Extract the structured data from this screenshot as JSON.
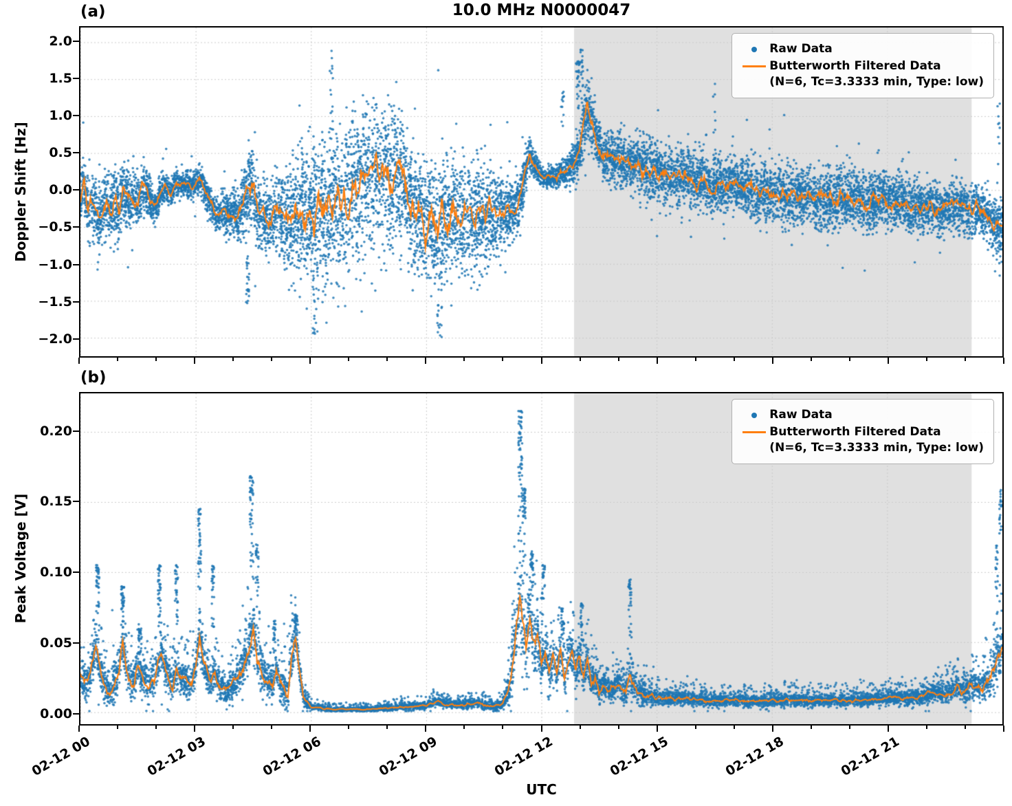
{
  "title": "10.0 MHz N0000047",
  "x_axis": {
    "label": "UTC",
    "ticks": [
      {
        "hour": 0,
        "label": "02-12 00"
      },
      {
        "hour": 3,
        "label": "02-12 03"
      },
      {
        "hour": 6,
        "label": "02-12 06"
      },
      {
        "hour": 9,
        "label": "02-12 09"
      },
      {
        "hour": 12,
        "label": "02-12 12"
      },
      {
        "hour": 15,
        "label": "02-12 15"
      },
      {
        "hour": 18,
        "label": "02-12 18"
      },
      {
        "hour": 21,
        "label": "02-12 21"
      }
    ]
  },
  "legend": {
    "raw_label": "Raw Data",
    "filtered_label": "Butterworth Filtered Data",
    "filtered_params": "(N=6, Tc=3.3333 min, Type: low)"
  },
  "colors": {
    "raw": "#1f77b4",
    "filtered": "#ff7f0e",
    "shade": "rgba(160,160,160,0.32)",
    "grid": "#c9c9c9"
  },
  "chart_data": [
    {
      "type": "scatter",
      "tag": "(a)",
      "title": "10.0 MHz N0000047",
      "ylabel": "Doppler Shift [Hz]",
      "xlabel": "UTC",
      "x_unit": "hours since 2023-02-12 00:00 UTC",
      "xlim_hours": [
        0,
        24
      ],
      "ylim": [
        -2.25,
        2.2
      ],
      "grid": true,
      "legend_position": "upper right",
      "legend": [
        "Raw Data",
        "Butterworth Filtered Data (N=6, Tc=3.3333 min, Type: low)"
      ],
      "shaded_region_hours": [
        12.85,
        23.2
      ],
      "seed": 42,
      "n_points": 12000,
      "spread": 0.75,
      "outlier_frac": 0.04,
      "line_jitter": 1.0,
      "yticks": [
        {
          "value": 2.0,
          "label": "2.0"
        },
        {
          "value": 1.5,
          "label": "1.5"
        },
        {
          "value": 1.0,
          "label": "1.0"
        },
        {
          "value": 0.5,
          "label": "0.5"
        },
        {
          "value": 0.0,
          "label": "0.0"
        },
        {
          "value": -0.5,
          "label": "−0.5"
        },
        {
          "value": -1.0,
          "label": "−1.0"
        },
        {
          "value": -1.5,
          "label": "−1.5"
        },
        {
          "value": -2.0,
          "label": "−2.0"
        }
      ],
      "filtered_line": {
        "x": [
          0.0,
          0.1,
          0.2,
          0.35,
          0.5,
          0.6,
          0.7,
          0.8,
          0.9,
          1.0,
          1.1,
          1.2,
          1.35,
          1.5,
          1.6,
          1.75,
          1.9,
          2.0,
          2.1,
          2.2,
          2.35,
          2.5,
          2.6,
          2.75,
          2.9,
          3.0,
          3.1,
          3.25,
          3.4,
          3.5,
          3.6,
          3.75,
          3.9,
          4.0,
          4.1,
          4.2,
          4.3,
          4.4,
          4.5,
          4.6,
          4.7,
          4.8,
          4.9,
          5.0,
          5.2,
          5.4,
          5.6,
          5.8,
          6.0,
          6.2,
          6.4,
          6.6,
          6.8,
          7.0,
          7.1,
          7.2,
          7.3,
          7.4,
          7.5,
          7.6,
          7.7,
          7.8,
          7.9,
          8.0,
          8.1,
          8.2,
          8.3,
          8.4,
          8.5,
          8.6,
          8.7,
          8.8,
          8.9,
          9.0,
          9.1,
          9.2,
          9.3,
          9.4,
          9.5,
          9.6,
          9.7,
          9.8,
          9.9,
          10.0,
          10.2,
          10.4,
          10.6,
          10.8,
          11.0,
          11.2,
          11.4,
          11.5,
          11.6,
          11.7,
          11.8,
          11.9,
          12.0,
          12.1,
          12.2,
          12.4,
          12.5,
          12.6,
          12.7,
          12.8,
          12.9,
          13.0,
          13.1,
          13.2,
          13.3,
          13.4,
          13.5,
          13.6,
          13.7,
          13.8,
          13.9,
          14.0,
          14.2,
          14.4,
          14.6,
          14.8,
          15.0,
          15.2,
          15.4,
          15.6,
          15.8,
          16.0,
          16.2,
          16.4,
          16.6,
          16.8,
          17.0,
          17.2,
          17.4,
          17.6,
          17.8,
          18.0,
          18.2,
          18.4,
          18.6,
          18.8,
          19.0,
          19.2,
          19.4,
          19.6,
          19.8,
          20.0,
          20.2,
          20.4,
          20.6,
          20.8,
          21.0,
          21.2,
          21.4,
          21.6,
          21.8,
          22.0,
          22.2,
          22.4,
          22.6,
          22.8,
          23.0,
          23.2,
          23.4,
          23.6,
          23.8,
          24.0
        ],
        "y": [
          -0.1,
          0.15,
          -0.3,
          -0.2,
          -0.45,
          -0.3,
          -0.2,
          -0.35,
          -0.15,
          -0.3,
          0.0,
          -0.15,
          -0.1,
          -0.2,
          0.05,
          -0.05,
          -0.25,
          -0.2,
          0.0,
          0.05,
          -0.05,
          0.1,
          0.05,
          0.1,
          0.05,
          0.1,
          0.15,
          0.0,
          -0.2,
          -0.3,
          -0.35,
          -0.3,
          -0.35,
          -0.3,
          -0.45,
          -0.2,
          -0.1,
          0.1,
          0.05,
          -0.3,
          -0.4,
          -0.35,
          -0.45,
          -0.4,
          -0.35,
          -0.45,
          -0.35,
          -0.3,
          -0.35,
          -0.25,
          -0.3,
          -0.2,
          -0.25,
          -0.1,
          0.1,
          -0.05,
          0.2,
          0.1,
          0.3,
          0.15,
          0.25,
          0.1,
          0.2,
          0.25,
          0.1,
          0.3,
          0.15,
          0.2,
          -0.1,
          -0.2,
          -0.3,
          -0.25,
          -0.4,
          -0.5,
          -0.4,
          -0.55,
          -0.45,
          -0.35,
          -0.45,
          -0.4,
          -0.3,
          -0.35,
          -0.45,
          -0.4,
          -0.35,
          -0.4,
          -0.3,
          -0.35,
          -0.3,
          -0.25,
          -0.2,
          0.0,
          0.3,
          0.5,
          0.35,
          0.25,
          0.2,
          0.15,
          0.2,
          0.15,
          0.25,
          0.2,
          0.3,
          0.35,
          0.4,
          0.5,
          0.9,
          1.1,
          0.95,
          0.8,
          0.6,
          0.5,
          0.45,
          0.5,
          0.4,
          0.45,
          0.35,
          0.4,
          0.3,
          0.25,
          0.3,
          0.2,
          0.25,
          0.15,
          0.2,
          0.1,
          0.15,
          0.05,
          0.1,
          0.05,
          0.1,
          0.0,
          0.05,
          -0.05,
          0.0,
          -0.05,
          0.0,
          -0.1,
          -0.05,
          -0.1,
          -0.05,
          -0.15,
          -0.1,
          -0.15,
          -0.1,
          -0.15,
          -0.1,
          -0.2,
          -0.15,
          -0.1,
          -0.15,
          -0.2,
          -0.15,
          -0.25,
          -0.2,
          -0.25,
          -0.2,
          -0.3,
          -0.25,
          -0.2,
          -0.25,
          -0.3,
          -0.25,
          -0.35,
          -0.45,
          -0.55
        ]
      },
      "raw_scatter_envelope": {
        "x": [
          0.0,
          0.5,
          1.0,
          1.5,
          2.0,
          2.5,
          3.0,
          3.5,
          4.0,
          4.3,
          4.5,
          5.0,
          5.5,
          6.0,
          6.5,
          7.0,
          7.5,
          8.0,
          8.5,
          9.0,
          9.5,
          10.0,
          10.5,
          11.0,
          11.5,
          12.0,
          12.5,
          12.8,
          13.0,
          13.2,
          13.5,
          14.0,
          14.5,
          15.0,
          16.0,
          17.0,
          18.0,
          19.0,
          20.0,
          21.0,
          22.0,
          23.0,
          23.5,
          24.0
        ],
        "amplitude": [
          0.45,
          0.5,
          0.55,
          0.4,
          0.25,
          0.2,
          0.2,
          0.25,
          0.35,
          0.5,
          0.6,
          0.55,
          0.9,
          1.1,
          1.2,
          1.15,
          1.1,
          1.05,
          0.9,
          0.9,
          0.95,
          0.9,
          0.8,
          0.6,
          0.35,
          0.15,
          0.18,
          0.25,
          0.35,
          0.45,
          0.4,
          0.4,
          0.45,
          0.45,
          0.45,
          0.4,
          0.45,
          0.45,
          0.45,
          0.4,
          0.4,
          0.35,
          0.35,
          0.45
        ]
      },
      "spikes": [
        {
          "x": 4.35,
          "peak": -1.55,
          "count": 25,
          "width": 0.1
        },
        {
          "x": 6.1,
          "peak": -2.0,
          "count": 20,
          "width": 0.15
        },
        {
          "x": 6.55,
          "peak": 1.9,
          "count": 15,
          "width": 0.12
        },
        {
          "x": 9.35,
          "peak": -2.0,
          "count": 18,
          "width": 0.12
        },
        {
          "x": 12.55,
          "peak": 1.35,
          "count": 12,
          "width": 0.08
        },
        {
          "x": 12.95,
          "peak": 1.8,
          "count": 30,
          "width": 0.1
        },
        {
          "x": 13.05,
          "peak": 1.9,
          "count": 20,
          "width": 0.08
        },
        {
          "x": 16.5,
          "peak": 1.45,
          "count": 8,
          "width": 0.06
        },
        {
          "x": 23.9,
          "peak": 1.3,
          "count": 10,
          "width": 0.08
        }
      ]
    },
    {
      "type": "scatter",
      "tag": "(b)",
      "title": "",
      "ylabel": "Peak Voltage [V]",
      "xlabel": "UTC",
      "x_unit": "hours since 2023-02-12 00:00 UTC",
      "xlim_hours": [
        0,
        24
      ],
      "ylim": [
        -0.0085,
        0.2275
      ],
      "grid": true,
      "legend_position": "upper right",
      "legend": [
        "Raw Data",
        "Butterworth Filtered Data (N=6, Tc=3.3333 min, Type: low)"
      ],
      "shaded_region_hours": [
        12.85,
        23.2
      ],
      "seed": 1337,
      "n_points": 9500,
      "spread": 0.6,
      "outlier_frac": 0.03,
      "line_jitter": 0.9,
      "nonneg": true,
      "yticks": [
        {
          "value": 0.2,
          "label": "0.20"
        },
        {
          "value": 0.15,
          "label": "0.15"
        },
        {
          "value": 0.1,
          "label": "0.10"
        },
        {
          "value": 0.05,
          "label": "0.05"
        },
        {
          "value": 0.0,
          "label": "0.00"
        }
      ],
      "filtered_line": {
        "x": [
          0.0,
          0.2,
          0.4,
          0.5,
          0.6,
          0.8,
          1.0,
          1.1,
          1.2,
          1.4,
          1.5,
          1.6,
          1.8,
          2.0,
          2.1,
          2.2,
          2.4,
          2.5,
          2.6,
          2.8,
          3.0,
          3.1,
          3.2,
          3.4,
          3.5,
          3.6,
          3.8,
          4.0,
          4.2,
          4.4,
          4.5,
          4.6,
          4.8,
          5.0,
          5.1,
          5.2,
          5.4,
          5.5,
          5.6,
          5.7,
          5.8,
          6.0,
          6.5,
          7.0,
          7.5,
          8.0,
          8.5,
          9.0,
          9.3,
          9.5,
          10.0,
          10.3,
          10.5,
          10.8,
          11.0,
          11.2,
          11.3,
          11.4,
          11.45,
          11.5,
          11.6,
          11.7,
          11.8,
          11.9,
          12.0,
          12.1,
          12.2,
          12.3,
          12.4,
          12.5,
          12.6,
          12.7,
          12.8,
          12.9,
          13.0,
          13.1,
          13.2,
          13.3,
          13.4,
          13.5,
          13.6,
          13.8,
          14.0,
          14.2,
          14.3,
          14.4,
          14.5,
          14.7,
          15.0,
          15.5,
          16.0,
          16.5,
          17.0,
          17.5,
          18.0,
          18.5,
          19.0,
          19.5,
          20.0,
          20.5,
          21.0,
          21.5,
          22.0,
          22.3,
          22.5,
          22.8,
          23.0,
          23.2,
          23.5,
          23.7,
          23.9,
          24.0
        ],
        "y": [
          0.025,
          0.02,
          0.05,
          0.03,
          0.02,
          0.015,
          0.03,
          0.05,
          0.03,
          0.02,
          0.035,
          0.025,
          0.02,
          0.03,
          0.045,
          0.03,
          0.02,
          0.03,
          0.025,
          0.02,
          0.03,
          0.055,
          0.035,
          0.02,
          0.03,
          0.02,
          0.015,
          0.02,
          0.03,
          0.05,
          0.065,
          0.04,
          0.025,
          0.02,
          0.03,
          0.02,
          0.015,
          0.04,
          0.055,
          0.03,
          0.01,
          0.004,
          0.002,
          0.002,
          0.002,
          0.003,
          0.004,
          0.005,
          0.008,
          0.006,
          0.005,
          0.007,
          0.005,
          0.004,
          0.006,
          0.02,
          0.05,
          0.07,
          0.09,
          0.06,
          0.05,
          0.07,
          0.045,
          0.055,
          0.03,
          0.045,
          0.025,
          0.04,
          0.03,
          0.045,
          0.025,
          0.035,
          0.045,
          0.03,
          0.04,
          0.025,
          0.035,
          0.02,
          0.025,
          0.015,
          0.02,
          0.015,
          0.02,
          0.015,
          0.03,
          0.02,
          0.015,
          0.012,
          0.01,
          0.01,
          0.009,
          0.008,
          0.009,
          0.008,
          0.008,
          0.009,
          0.008,
          0.009,
          0.008,
          0.009,
          0.01,
          0.01,
          0.012,
          0.015,
          0.012,
          0.018,
          0.015,
          0.02,
          0.018,
          0.025,
          0.04,
          0.045
        ]
      },
      "raw_scatter_envelope": {
        "x": [
          0.0,
          0.5,
          1.0,
          1.5,
          2.0,
          2.5,
          3.0,
          3.5,
          4.0,
          4.5,
          5.0,
          5.5,
          5.8,
          6.0,
          7.0,
          8.0,
          9.0,
          10.0,
          11.0,
          11.3,
          11.5,
          11.7,
          12.0,
          12.5,
          13.0,
          13.5,
          14.0,
          14.3,
          14.5,
          15.0,
          16.0,
          17.0,
          18.0,
          19.0,
          20.0,
          21.0,
          22.0,
          23.0,
          23.5,
          24.0
        ],
        "amplitude": [
          0.015,
          0.02,
          0.02,
          0.02,
          0.02,
          0.015,
          0.02,
          0.015,
          0.015,
          0.03,
          0.015,
          0.025,
          0.008,
          0.003,
          0.002,
          0.003,
          0.004,
          0.004,
          0.005,
          0.03,
          0.05,
          0.035,
          0.025,
          0.02,
          0.018,
          0.012,
          0.012,
          0.02,
          0.012,
          0.008,
          0.006,
          0.006,
          0.006,
          0.006,
          0.006,
          0.007,
          0.008,
          0.012,
          0.015,
          0.025
        ]
      },
      "spikes": [
        {
          "x": 0.45,
          "peak": 0.105,
          "count": 40,
          "width": 0.08
        },
        {
          "x": 1.1,
          "peak": 0.09,
          "count": 35,
          "width": 0.08
        },
        {
          "x": 1.55,
          "peak": 0.06,
          "count": 25,
          "width": 0.08
        },
        {
          "x": 2.05,
          "peak": 0.105,
          "count": 35,
          "width": 0.08
        },
        {
          "x": 2.5,
          "peak": 0.105,
          "count": 35,
          "width": 0.08
        },
        {
          "x": 3.1,
          "peak": 0.145,
          "count": 40,
          "width": 0.08
        },
        {
          "x": 3.45,
          "peak": 0.105,
          "count": 30,
          "width": 0.07
        },
        {
          "x": 4.45,
          "peak": 0.17,
          "count": 45,
          "width": 0.1
        },
        {
          "x": 4.6,
          "peak": 0.12,
          "count": 25,
          "width": 0.07
        },
        {
          "x": 5.05,
          "peak": 0.065,
          "count": 20,
          "width": 0.07
        },
        {
          "x": 5.6,
          "peak": 0.07,
          "count": 25,
          "width": 0.08
        },
        {
          "x": 11.45,
          "peak": 0.215,
          "count": 60,
          "width": 0.1
        },
        {
          "x": 11.55,
          "peak": 0.16,
          "count": 40,
          "width": 0.08
        },
        {
          "x": 11.75,
          "peak": 0.115,
          "count": 35,
          "width": 0.08
        },
        {
          "x": 12.05,
          "peak": 0.105,
          "count": 30,
          "width": 0.08
        },
        {
          "x": 12.55,
          "peak": 0.075,
          "count": 25,
          "width": 0.08
        },
        {
          "x": 13.05,
          "peak": 0.08,
          "count": 25,
          "width": 0.08
        },
        {
          "x": 14.3,
          "peak": 0.095,
          "count": 30,
          "width": 0.08
        },
        {
          "x": 23.85,
          "peak": 0.12,
          "count": 20,
          "width": 0.06
        },
        {
          "x": 23.95,
          "peak": 0.17,
          "count": 25,
          "width": 0.06
        }
      ]
    }
  ]
}
